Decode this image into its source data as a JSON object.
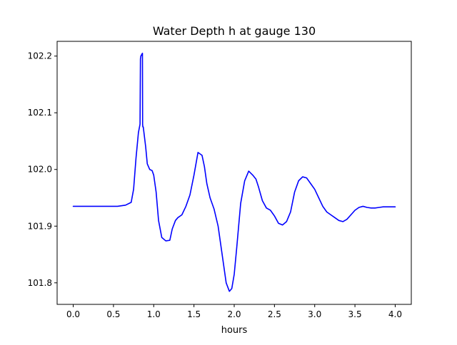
{
  "chart_data": {
    "type": "line",
    "title": "Water Depth h at gauge 130",
    "xlabel": "hours",
    "ylabel": "",
    "xlim": [
      -0.2,
      4.2
    ],
    "ylim": [
      101.762,
      102.226
    ],
    "xticks": [
      0.0,
      0.5,
      1.0,
      1.5,
      2.0,
      2.5,
      3.0,
      3.5,
      4.0
    ],
    "xtick_labels": [
      "0.0",
      "0.5",
      "1.0",
      "1.5",
      "2.0",
      "2.5",
      "3.0",
      "3.5",
      "4.0"
    ],
    "yticks": [
      101.8,
      101.9,
      102.0,
      102.1,
      102.2
    ],
    "ytick_labels": [
      "101.8",
      "101.9",
      "102.0",
      "102.1",
      "102.2"
    ],
    "grid": false,
    "legend": "none",
    "series": [
      {
        "color": "#0000ff",
        "x": [
          0.0,
          0.2,
          0.4,
          0.55,
          0.65,
          0.72,
          0.75,
          0.78,
          0.81,
          0.83,
          0.835,
          0.84,
          0.86,
          0.862,
          0.865,
          0.87,
          0.9,
          0.92,
          0.95,
          0.98,
          1.0,
          1.03,
          1.06,
          1.1,
          1.15,
          1.2,
          1.23,
          1.27,
          1.3,
          1.35,
          1.4,
          1.45,
          1.5,
          1.55,
          1.6,
          1.63,
          1.66,
          1.7,
          1.75,
          1.8,
          1.85,
          1.9,
          1.94,
          1.97,
          2.0,
          2.03,
          2.08,
          2.13,
          2.18,
          2.23,
          2.27,
          2.3,
          2.35,
          2.4,
          2.45,
          2.5,
          2.55,
          2.6,
          2.65,
          2.7,
          2.75,
          2.8,
          2.85,
          2.9,
          2.95,
          3.0,
          3.05,
          3.1,
          3.15,
          3.2,
          3.25,
          3.3,
          3.35,
          3.4,
          3.45,
          3.5,
          3.55,
          3.6,
          3.65,
          3.7,
          3.75,
          3.8,
          3.85,
          3.9,
          3.95,
          4.0
        ],
        "y": [
          101.935,
          101.935,
          101.935,
          101.935,
          101.937,
          101.942,
          101.965,
          102.02,
          102.065,
          102.08,
          102.195,
          102.2,
          102.205,
          102.08,
          102.075,
          102.075,
          102.04,
          102.01,
          102.0,
          101.998,
          101.99,
          101.96,
          101.91,
          101.88,
          101.874,
          101.875,
          101.895,
          101.91,
          101.915,
          101.92,
          101.935,
          101.955,
          101.99,
          102.03,
          102.025,
          102.005,
          101.975,
          101.95,
          101.93,
          101.9,
          101.85,
          101.8,
          101.785,
          101.79,
          101.815,
          101.86,
          101.94,
          101.98,
          101.997,
          101.99,
          101.983,
          101.97,
          101.945,
          101.932,
          101.928,
          101.918,
          101.905,
          101.902,
          101.908,
          101.925,
          101.96,
          101.98,
          101.987,
          101.985,
          101.975,
          101.965,
          101.95,
          101.935,
          101.925,
          101.92,
          101.915,
          101.91,
          101.908,
          101.912,
          101.92,
          101.928,
          101.933,
          101.935,
          101.933,
          101.932,
          101.932,
          101.933,
          101.934,
          101.934,
          101.934,
          101.934
        ]
      }
    ]
  }
}
